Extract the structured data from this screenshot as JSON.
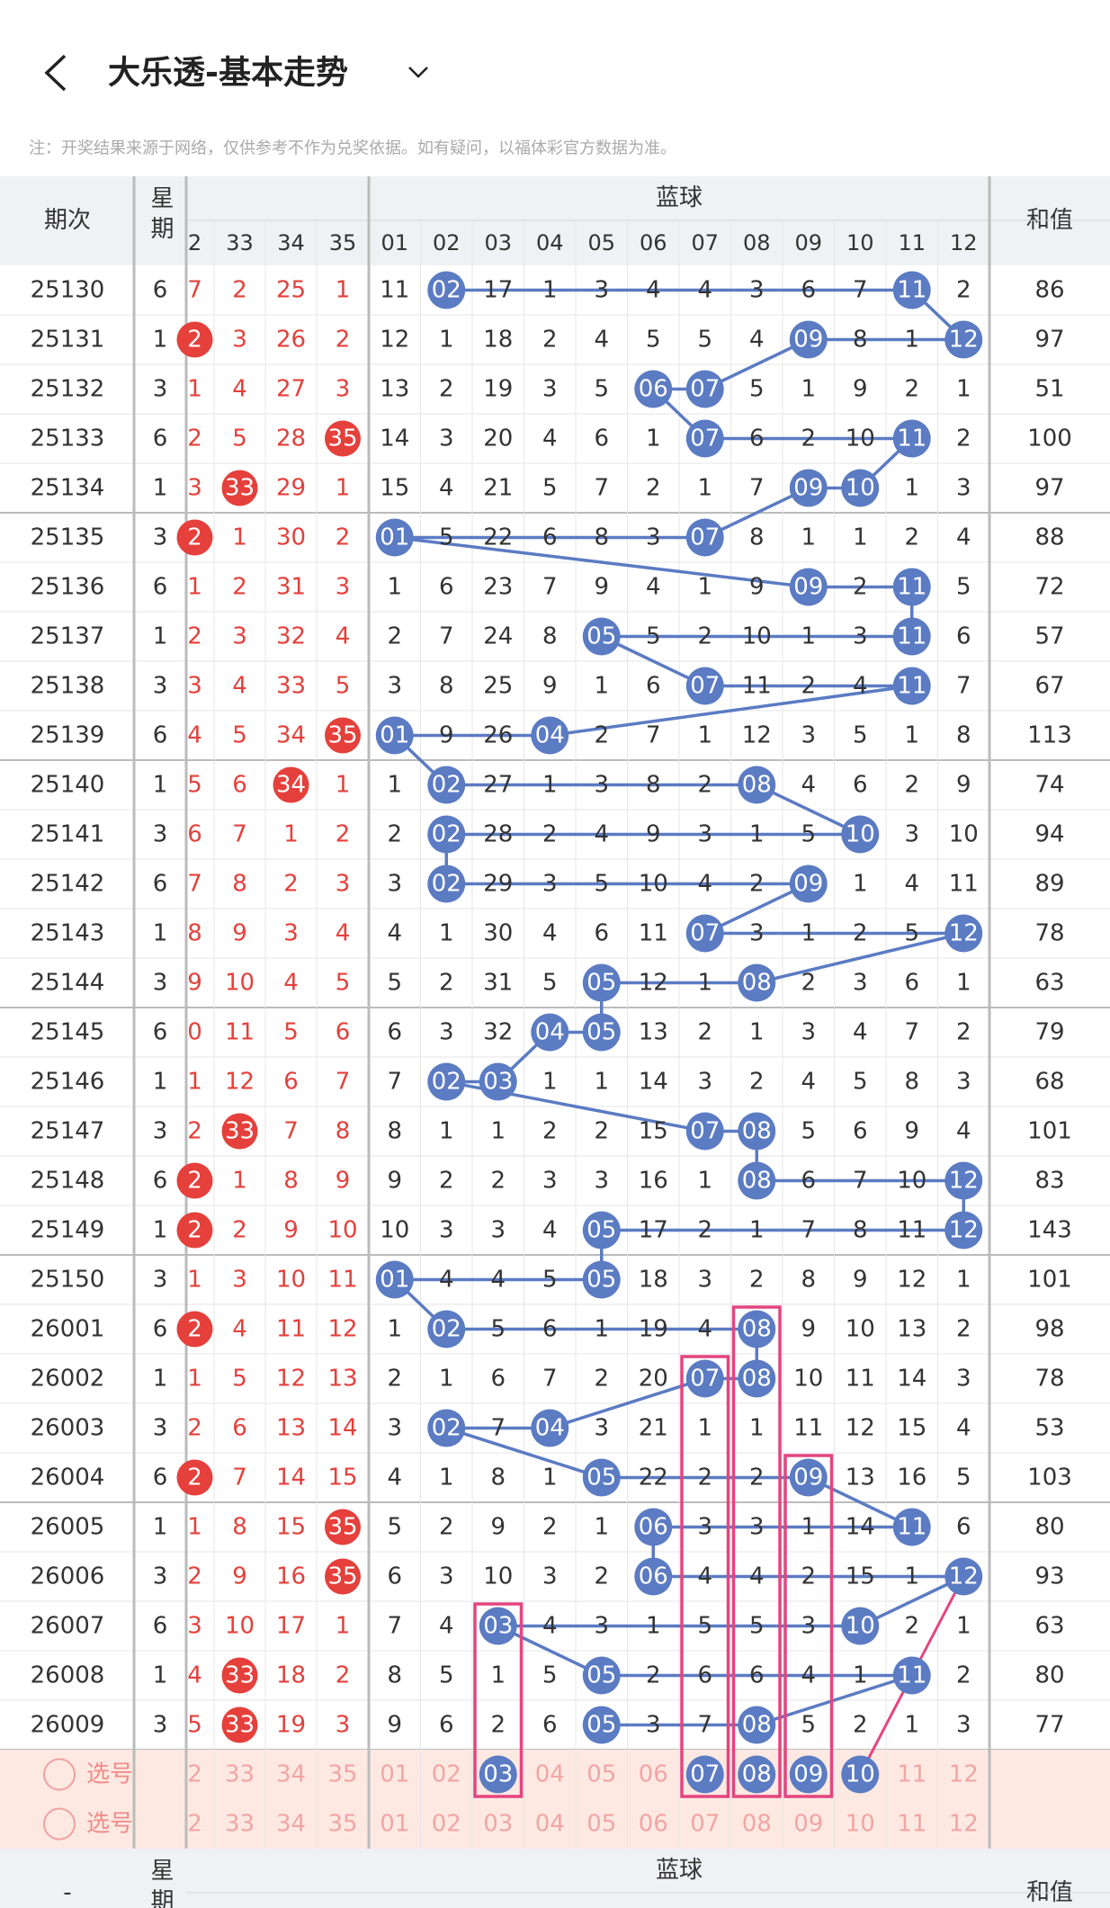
{
  "header": {
    "title": "大乐透-基本走势",
    "note": "注：开奖结果来源于网络，仅供参考不作为兑奖依据。如有疑问，以福体彩官方数据为准。"
  },
  "table": {
    "col_period": "期次",
    "col_weekday": "星期",
    "col_blue": "蓝球",
    "col_sum": "和值",
    "red_columns": [
      "2",
      "33",
      "34",
      "35"
    ],
    "blue_columns": [
      "01",
      "02",
      "03",
      "04",
      "05",
      "06",
      "07",
      "08",
      "09",
      "10",
      "11",
      "12"
    ],
    "rows": [
      {
        "period": "25130",
        "weekday": "6",
        "red": [
          "7",
          "2",
          "25",
          "1"
        ],
        "red_hits": [],
        "blue": [
          "11",
          "02",
          "17",
          "1",
          "3",
          "4",
          "4",
          "3",
          "6",
          "7",
          "11",
          "2"
        ],
        "blue_hits": [
          1,
          10
        ],
        "sum": "86"
      },
      {
        "period": "25131",
        "weekday": "1",
        "red": [
          "2",
          "3",
          "26",
          "2"
        ],
        "red_hits": [
          0
        ],
        "blue": [
          "12",
          "1",
          "18",
          "2",
          "4",
          "5",
          "5",
          "4",
          "09",
          "8",
          "1",
          "12"
        ],
        "blue_hits": [
          8,
          11
        ],
        "sum": "97"
      },
      {
        "period": "25132",
        "weekday": "3",
        "red": [
          "1",
          "4",
          "27",
          "3"
        ],
        "red_hits": [],
        "blue": [
          "13",
          "2",
          "19",
          "3",
          "5",
          "06",
          "07",
          "5",
          "1",
          "9",
          "2",
          "1"
        ],
        "blue_hits": [
          5,
          6
        ],
        "sum": "51"
      },
      {
        "period": "25133",
        "weekday": "6",
        "red": [
          "2",
          "5",
          "28",
          "35"
        ],
        "red_hits": [
          3
        ],
        "blue": [
          "14",
          "3",
          "20",
          "4",
          "6",
          "1",
          "07",
          "6",
          "2",
          "10",
          "11",
          "2"
        ],
        "blue_hits": [
          6,
          10
        ],
        "sum": "100"
      },
      {
        "period": "25134",
        "weekday": "1",
        "red": [
          "3",
          "33",
          "29",
          "1"
        ],
        "red_hits": [
          1
        ],
        "blue": [
          "15",
          "4",
          "21",
          "5",
          "7",
          "2",
          "1",
          "7",
          "09",
          "10",
          "1",
          "3"
        ],
        "blue_hits": [
          8,
          9
        ],
        "sum": "97"
      },
      {
        "period": "25135",
        "weekday": "3",
        "red": [
          "2",
          "1",
          "30",
          "2"
        ],
        "red_hits": [
          0
        ],
        "blue": [
          "01",
          "5",
          "22",
          "6",
          "8",
          "3",
          "07",
          "8",
          "1",
          "1",
          "2",
          "4"
        ],
        "blue_hits": [
          0,
          6
        ],
        "sum": "88"
      },
      {
        "period": "25136",
        "weekday": "6",
        "red": [
          "1",
          "2",
          "31",
          "3"
        ],
        "red_hits": [],
        "blue": [
          "1",
          "6",
          "23",
          "7",
          "9",
          "4",
          "1",
          "9",
          "09",
          "2",
          "11",
          "5"
        ],
        "blue_hits": [
          8,
          10
        ],
        "sum": "72"
      },
      {
        "period": "25137",
        "weekday": "1",
        "red": [
          "2",
          "3",
          "32",
          "4"
        ],
        "red_hits": [],
        "blue": [
          "2",
          "7",
          "24",
          "8",
          "05",
          "5",
          "2",
          "10",
          "1",
          "3",
          "11",
          "6"
        ],
        "blue_hits": [
          4,
          10
        ],
        "sum": "57"
      },
      {
        "period": "25138",
        "weekday": "3",
        "red": [
          "3",
          "4",
          "33",
          "5"
        ],
        "red_hits": [],
        "blue": [
          "3",
          "8",
          "25",
          "9",
          "1",
          "6",
          "07",
          "11",
          "2",
          "4",
          "11",
          "7"
        ],
        "blue_hits": [
          6,
          10
        ],
        "sum": "67"
      },
      {
        "period": "25139",
        "weekday": "6",
        "red": [
          "4",
          "5",
          "34",
          "35"
        ],
        "red_hits": [
          3
        ],
        "blue": [
          "01",
          "9",
          "26",
          "04",
          "2",
          "7",
          "1",
          "12",
          "3",
          "5",
          "1",
          "8"
        ],
        "blue_hits": [
          0,
          3
        ],
        "sum": "113"
      },
      {
        "period": "25140",
        "weekday": "1",
        "red": [
          "5",
          "6",
          "34",
          "1"
        ],
        "red_hits": [
          2
        ],
        "blue": [
          "1",
          "02",
          "27",
          "1",
          "3",
          "8",
          "2",
          "08",
          "4",
          "6",
          "2",
          "9"
        ],
        "blue_hits": [
          1,
          7
        ],
        "sum": "74"
      },
      {
        "period": "25141",
        "weekday": "3",
        "red": [
          "6",
          "7",
          "1",
          "2"
        ],
        "red_hits": [],
        "blue": [
          "2",
          "02",
          "28",
          "2",
          "4",
          "9",
          "3",
          "1",
          "5",
          "10",
          "3",
          "10"
        ],
        "blue_hits": [
          1,
          9
        ],
        "sum": "94"
      },
      {
        "period": "25142",
        "weekday": "6",
        "red": [
          "7",
          "8",
          "2",
          "3"
        ],
        "red_hits": [],
        "blue": [
          "3",
          "02",
          "29",
          "3",
          "5",
          "10",
          "4",
          "2",
          "09",
          "1",
          "4",
          "11"
        ],
        "blue_hits": [
          1,
          8
        ],
        "sum": "89"
      },
      {
        "period": "25143",
        "weekday": "1",
        "red": [
          "8",
          "9",
          "3",
          "4"
        ],
        "red_hits": [],
        "blue": [
          "4",
          "1",
          "30",
          "4",
          "6",
          "11",
          "07",
          "3",
          "1",
          "2",
          "5",
          "12"
        ],
        "blue_hits": [
          6,
          11
        ],
        "sum": "78"
      },
      {
        "period": "25144",
        "weekday": "3",
        "red": [
          "9",
          "10",
          "4",
          "5"
        ],
        "red_hits": [],
        "blue": [
          "5",
          "2",
          "31",
          "5",
          "05",
          "12",
          "1",
          "08",
          "2",
          "3",
          "6",
          "1"
        ],
        "blue_hits": [
          4,
          7
        ],
        "sum": "63"
      },
      {
        "period": "25145",
        "weekday": "6",
        "red": [
          "0",
          "11",
          "5",
          "6"
        ],
        "red_hits": [],
        "blue": [
          "6",
          "3",
          "32",
          "04",
          "05",
          "13",
          "2",
          "1",
          "3",
          "4",
          "7",
          "2"
        ],
        "blue_hits": [
          3,
          4
        ],
        "sum": "79"
      },
      {
        "period": "25146",
        "weekday": "1",
        "red": [
          "1",
          "12",
          "6",
          "7"
        ],
        "red_hits": [],
        "blue": [
          "7",
          "02",
          "03",
          "1",
          "1",
          "14",
          "3",
          "2",
          "4",
          "5",
          "8",
          "3"
        ],
        "blue_hits": [
          1,
          2
        ],
        "sum": "68"
      },
      {
        "period": "25147",
        "weekday": "3",
        "red": [
          "2",
          "33",
          "7",
          "8"
        ],
        "red_hits": [
          1
        ],
        "blue": [
          "8",
          "1",
          "1",
          "2",
          "2",
          "15",
          "07",
          "08",
          "5",
          "6",
          "9",
          "4"
        ],
        "blue_hits": [
          6,
          7
        ],
        "sum": "101"
      },
      {
        "period": "25148",
        "weekday": "6",
        "red": [
          "2",
          "1",
          "8",
          "9"
        ],
        "red_hits": [
          0
        ],
        "blue": [
          "9",
          "2",
          "2",
          "3",
          "3",
          "16",
          "1",
          "08",
          "6",
          "7",
          "10",
          "12"
        ],
        "blue_hits": [
          7,
          11
        ],
        "sum": "83"
      },
      {
        "period": "25149",
        "weekday": "1",
        "red": [
          "2",
          "2",
          "9",
          "10"
        ],
        "red_hits": [
          0
        ],
        "blue": [
          "10",
          "3",
          "3",
          "4",
          "05",
          "17",
          "2",
          "1",
          "7",
          "8",
          "11",
          "12"
        ],
        "blue_hits": [
          4,
          11
        ],
        "sum": "143"
      },
      {
        "period": "25150",
        "weekday": "3",
        "red": [
          "1",
          "3",
          "10",
          "11"
        ],
        "red_hits": [],
        "blue": [
          "01",
          "4",
          "4",
          "5",
          "05",
          "18",
          "3",
          "2",
          "8",
          "9",
          "12",
          "1"
        ],
        "blue_hits": [
          0,
          4
        ],
        "sum": "101"
      },
      {
        "period": "26001",
        "weekday": "6",
        "red": [
          "2",
          "4",
          "11",
          "12"
        ],
        "red_hits": [
          0
        ],
        "blue": [
          "1",
          "02",
          "5",
          "6",
          "1",
          "19",
          "4",
          "08",
          "9",
          "10",
          "13",
          "2"
        ],
        "blue_hits": [
          1,
          7
        ],
        "sum": "98"
      },
      {
        "period": "26002",
        "weekday": "1",
        "red": [
          "1",
          "5",
          "12",
          "13"
        ],
        "red_hits": [],
        "blue": [
          "2",
          "1",
          "6",
          "7",
          "2",
          "20",
          "07",
          "08",
          "10",
          "11",
          "14",
          "3"
        ],
        "blue_hits": [
          6,
          7
        ],
        "sum": "78"
      },
      {
        "period": "26003",
        "weekday": "3",
        "red": [
          "2",
          "6",
          "13",
          "14"
        ],
        "red_hits": [],
        "blue": [
          "3",
          "02",
          "7",
          "04",
          "3",
          "21",
          "1",
          "1",
          "11",
          "12",
          "15",
          "4"
        ],
        "blue_hits": [
          1,
          3
        ],
        "sum": "53"
      },
      {
        "period": "26004",
        "weekday": "6",
        "red": [
          "2",
          "7",
          "14",
          "15"
        ],
        "red_hits": [
          0
        ],
        "blue": [
          "4",
          "1",
          "8",
          "1",
          "05",
          "22",
          "2",
          "2",
          "09",
          "13",
          "16",
          "5"
        ],
        "blue_hits": [
          4,
          8
        ],
        "sum": "103"
      },
      {
        "period": "26005",
        "weekday": "1",
        "red": [
          "1",
          "8",
          "15",
          "35"
        ],
        "red_hits": [
          3
        ],
        "blue": [
          "5",
          "2",
          "9",
          "2",
          "1",
          "06",
          "3",
          "3",
          "1",
          "14",
          "11",
          "6"
        ],
        "blue_hits": [
          5,
          10
        ],
        "sum": "80"
      },
      {
        "period": "26006",
        "weekday": "3",
        "red": [
          "2",
          "9",
          "16",
          "35"
        ],
        "red_hits": [
          3
        ],
        "blue": [
          "6",
          "3",
          "10",
          "3",
          "2",
          "06",
          "4",
          "4",
          "2",
          "15",
          "1",
          "12"
        ],
        "blue_hits": [
          5,
          11
        ],
        "sum": "93"
      },
      {
        "period": "26007",
        "weekday": "6",
        "red": [
          "3",
          "10",
          "17",
          "1"
        ],
        "red_hits": [],
        "blue": [
          "7",
          "4",
          "03",
          "4",
          "3",
          "1",
          "5",
          "5",
          "3",
          "10",
          "2",
          "1"
        ],
        "blue_hits": [
          2,
          9
        ],
        "sum": "63"
      },
      {
        "period": "26008",
        "weekday": "1",
        "red": [
          "4",
          "33",
          "18",
          "2"
        ],
        "red_hits": [
          1
        ],
        "blue": [
          "8",
          "5",
          "1",
          "5",
          "05",
          "2",
          "6",
          "6",
          "4",
          "1",
          "11",
          "2"
        ],
        "blue_hits": [
          4,
          10
        ],
        "sum": "80"
      },
      {
        "period": "26009",
        "weekday": "3",
        "red": [
          "5",
          "33",
          "19",
          "3"
        ],
        "red_hits": [
          1
        ],
        "blue": [
          "9",
          "6",
          "2",
          "6",
          "05",
          "3",
          "7",
          "08",
          "5",
          "2",
          "1",
          "3"
        ],
        "blue_hits": [
          4,
          7
        ],
        "sum": "77"
      }
    ],
    "pick_rows": [
      {
        "label": "选号",
        "red": [
          "2",
          "33",
          "34",
          "35"
        ],
        "blue": [
          "01",
          "02",
          "03",
          "04",
          "05",
          "06",
          "07",
          "08",
          "09",
          "10",
          "11",
          "12"
        ],
        "blue_hits": [
          2,
          6,
          7,
          8,
          9
        ]
      },
      {
        "label": "选号",
        "red": [
          "2",
          "33",
          "34",
          "35"
        ],
        "blue": [
          "01",
          "02",
          "03",
          "04",
          "05",
          "06",
          "07",
          "08",
          "09",
          "10",
          "11",
          "12"
        ],
        "blue_hits": []
      }
    ]
  },
  "footer_header": {
    "col_period": "-",
    "col_weekday": "星期",
    "col_blue": "蓝球",
    "col_sum": "和值"
  }
}
